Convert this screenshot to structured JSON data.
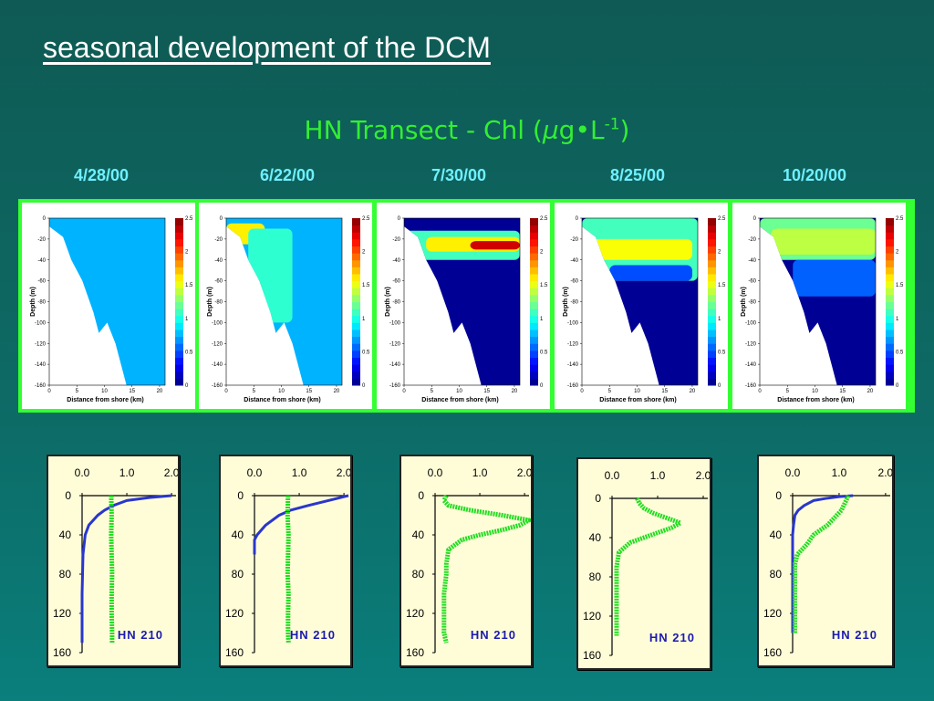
{
  "slide": {
    "title": "seasonal development of the DCM",
    "chart_title_main": "HN Transect - Chl (",
    "chart_title_mu": "µ",
    "chart_title_unit": "g•L",
    "chart_title_sup": "-1",
    "chart_title_end": ")"
  },
  "colors": {
    "title": "#ffffff",
    "chart_title": "#33ee33",
    "dates": "#6ff0ff",
    "frame": "#33ff33",
    "profile_bg": "#fffdd8",
    "chl_profile": "#22dd22",
    "light_profile": "#2a36cc",
    "label": "#1a1ab0"
  },
  "dates": [
    "4/28/00",
    "6/22/00",
    "7/30/00",
    "8/25/00",
    "10/20/00"
  ],
  "chart_data": [
    {
      "type": "heatmap",
      "panel": "transect-sections",
      "xlabel": "Distance from shore (km)",
      "ylabel": "Depth (m)",
      "x_ticks": [
        "0",
        "5",
        "10",
        "15",
        "20"
      ],
      "y_ticks": [
        "0",
        "-20",
        "-40",
        "-60",
        "-80",
        "-100",
        "-120",
        "-140",
        "-160"
      ],
      "xlim": [
        0,
        21
      ],
      "ylim": [
        -160,
        0
      ],
      "colorbar_ticks": [
        "2.5",
        "2",
        "1.5",
        "1",
        "0.5",
        "0"
      ],
      "colorbar_range": [
        0,
        2.5
      ],
      "bottom_profile": [
        [
          0,
          -8
        ],
        [
          2.5,
          -18
        ],
        [
          4,
          -40
        ],
        [
          6,
          -60
        ],
        [
          8,
          -90
        ],
        [
          9,
          -110
        ],
        [
          10.5,
          -100
        ],
        [
          12,
          -120
        ],
        [
          13,
          -140
        ],
        [
          14,
          -160
        ]
      ],
      "sections": [
        {
          "date": "4/28/00",
          "background_chl": 0.75,
          "layers": []
        },
        {
          "date": "6/22/00",
          "background_chl": 0.75,
          "layers": [
            {
              "x": [
                0,
                7
              ],
              "depth": [
                -5,
                -25
              ],
              "chl": 1.6
            },
            {
              "x": [
                4,
                12
              ],
              "depth": [
                -10,
                -100
              ],
              "chl": 1.05
            }
          ]
        },
        {
          "date": "7/30/00",
          "background_chl": 0.05,
          "layers": [
            {
              "x": [
                0,
                21
              ],
              "depth": [
                -12,
                -40
              ],
              "chl": 1.1
            },
            {
              "x": [
                4,
                21
              ],
              "depth": [
                -18,
                -32
              ],
              "chl": 1.6
            },
            {
              "x": [
                12,
                21
              ],
              "depth": [
                -22,
                -30
              ],
              "chl": 2.3
            }
          ]
        },
        {
          "date": "8/25/00",
          "background_chl": 0.05,
          "layers": [
            {
              "x": [
                0,
                21
              ],
              "depth": [
                0,
                -60
              ],
              "chl": 1.1
            },
            {
              "x": [
                2,
                20
              ],
              "depth": [
                -20,
                -40
              ],
              "chl": 1.55
            },
            {
              "x": [
                5,
                20
              ],
              "depth": [
                -45,
                -60
              ],
              "chl": 0.5
            }
          ]
        },
        {
          "date": "10/20/00",
          "background_chl": 0.05,
          "layers": [
            {
              "x": [
                0,
                21
              ],
              "depth": [
                0,
                -40
              ],
              "chl": 1.2
            },
            {
              "x": [
                2,
                21
              ],
              "depth": [
                -10,
                -35
              ],
              "chl": 1.4
            },
            {
              "x": [
                6,
                21
              ],
              "depth": [
                -40,
                -75
              ],
              "chl": 0.55
            }
          ]
        }
      ]
    },
    {
      "type": "line",
      "panel": "station-profiles",
      "x_ticks": [
        "0.0",
        "1.0",
        "2.0"
      ],
      "y_ticks": [
        "0",
        "40",
        "80",
        "120",
        "160"
      ],
      "xlim": [
        0,
        2.1
      ],
      "ylim": [
        0,
        160
      ],
      "station_label": "HN 210",
      "profiles": [
        {
          "date": "4/28/00",
          "chl": {
            "depth": [
              0,
              20,
              40,
              60,
              80,
              100,
              120,
              140,
              150
            ],
            "value": [
              0.65,
              0.66,
              0.65,
              0.66,
              0.67,
              0.66,
              0.66,
              0.67,
              0.67
            ]
          },
          "light": {
            "depth": [
              0,
              2,
              5,
              10,
              15,
              20,
              30,
              40,
              60,
              100,
              150
            ],
            "value": [
              2.0,
              1.5,
              1.0,
              0.7,
              0.5,
              0.35,
              0.15,
              0.07,
              0.02,
              0.0,
              0.0
            ]
          }
        },
        {
          "date": "6/22/00",
          "chl": {
            "depth": [
              0,
              20,
              40,
              60,
              80,
              100,
              120,
              140,
              150
            ],
            "value": [
              0.75,
              0.74,
              0.76,
              0.75,
              0.74,
              0.76,
              0.75,
              0.75,
              0.76
            ]
          },
          "light": {
            "depth": [
              0,
              5,
              10,
              15,
              20,
              30,
              40,
              45,
              60
            ],
            "value": [
              2.1,
              1.65,
              1.2,
              0.8,
              0.55,
              0.25,
              0.06,
              0.0,
              0.0
            ]
          }
        },
        {
          "date": "7/30/00",
          "chl": {
            "depth": [
              0,
              5,
              10,
              15,
              20,
              25,
              30,
              35,
              40,
              45,
              55,
              70,
              80,
              100,
              120,
              140,
              150
            ],
            "value": [
              0.25,
              0.2,
              0.3,
              0.8,
              1.5,
              2.1,
              1.9,
              1.5,
              1.0,
              0.6,
              0.3,
              0.25,
              0.25,
              0.2,
              0.2,
              0.2,
              0.25
            ]
          },
          "light": {
            "depth": [],
            "value": []
          }
        },
        {
          "date": "8/25/00",
          "chl": {
            "depth": [
              0,
              5,
              10,
              15,
              20,
              25,
              30,
              35,
              40,
              45,
              55,
              70,
              80,
              100,
              120,
              140
            ],
            "value": [
              0.55,
              0.6,
              0.7,
              0.9,
              1.2,
              1.5,
              1.3,
              1.0,
              0.7,
              0.4,
              0.15,
              0.1,
              0.1,
              0.1,
              0.1,
              0.1
            ]
          },
          "light": {
            "depth": [],
            "value": []
          }
        },
        {
          "date": "10/20/00",
          "chl": {
            "depth": [
              0,
              5,
              10,
              15,
              20,
              25,
              30,
              35,
              40,
              50,
              60,
              70,
              80,
              100,
              120,
              140
            ],
            "value": [
              1.2,
              1.15,
              1.1,
              1.05,
              0.95,
              0.85,
              0.75,
              0.6,
              0.45,
              0.3,
              0.1,
              0.05,
              0.05,
              0.05,
              0.05,
              0.05
            ]
          },
          "light": {
            "depth": [
              0,
              1,
              3,
              5,
              10,
              15,
              20,
              30,
              40,
              60,
              100,
              140
            ],
            "value": [
              1.3,
              1.0,
              0.7,
              0.45,
              0.25,
              0.12,
              0.05,
              0.02,
              0.0,
              0.0,
              0.0,
              0.0
            ]
          }
        }
      ]
    }
  ]
}
